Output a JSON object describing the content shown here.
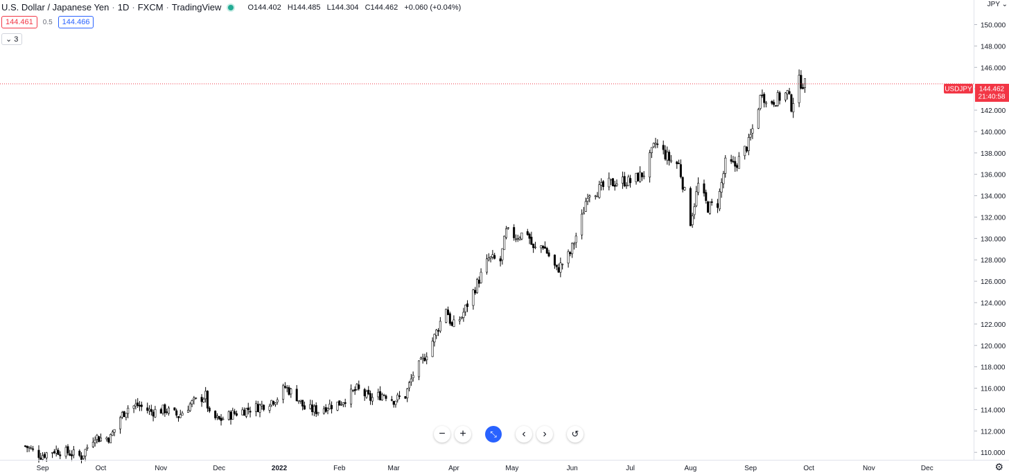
{
  "legend": {
    "symbol_title": "U.S. Dollar / Japanese Yen",
    "interval": "1D",
    "exchange": "FXCM",
    "source": "TradingView",
    "open": "O144.402",
    "high": "H144.485",
    "low": "L144.304",
    "close": "C144.462",
    "change": "+0.060 (+0.04%)"
  },
  "trade": {
    "sell_price": "144.461",
    "spread": "0.5",
    "buy_price": "144.466"
  },
  "indicators_toggle": "3",
  "currency": "JPY",
  "price_label": {
    "symbol": "USDJPY",
    "price": "144.462",
    "countdown": "21:40:58"
  },
  "colors": {
    "price_line": "#f23645",
    "candle": "#000000",
    "accent": "#2962ff"
  },
  "navigation": {
    "icons": [
      "zoom-out-icon",
      "zoom-in-icon",
      "reset-scale-icon",
      "scroll-left-icon",
      "scroll-right-icon",
      "reset-chart-icon"
    ]
  },
  "chart_data": {
    "type": "candlestick",
    "series_name": "USDJPY",
    "y_ticks": [
      "150.000",
      "148.000",
      "146.000",
      "144.000",
      "142.000",
      "140.000",
      "138.000",
      "136.000",
      "134.000",
      "132.000",
      "130.000",
      "128.000",
      "126.000",
      "124.000",
      "122.000",
      "120.000",
      "118.000",
      "116.000",
      "114.000",
      "112.000",
      "110.000"
    ],
    "ylim": [
      109.3,
      152.3
    ],
    "x_ticks": [
      {
        "label": "Sep",
        "date": "2021-09-01"
      },
      {
        "label": "Oct",
        "date": "2021-10-01"
      },
      {
        "label": "Nov",
        "date": "2021-11-01"
      },
      {
        "label": "Dec",
        "date": "2021-12-01"
      },
      {
        "label": "2022",
        "date": "2022-01-01"
      },
      {
        "label": "Feb",
        "date": "2022-02-01"
      },
      {
        "label": "Mar",
        "date": "2022-03-01"
      },
      {
        "label": "Apr",
        "date": "2022-04-01"
      },
      {
        "label": "May",
        "date": "2022-05-01"
      },
      {
        "label": "Jun",
        "date": "2022-06-01"
      },
      {
        "label": "Jul",
        "date": "2022-07-01"
      },
      {
        "label": "Aug",
        "date": "2022-08-01"
      },
      {
        "label": "Sep",
        "date": "2022-09-01"
      },
      {
        "label": "Oct",
        "date": "2022-10-01"
      },
      {
        "label": "Nov",
        "date": "2022-11-01"
      },
      {
        "label": "Dec",
        "date": "2022-12-01"
      }
    ],
    "last_price": 144.462,
    "anchors": [
      [
        "2021-08-23",
        110.6
      ],
      [
        "2021-08-31",
        109.7
      ],
      [
        "2021-09-07",
        110.2
      ],
      [
        "2021-09-14",
        110.0
      ],
      [
        "2021-09-21",
        109.6
      ],
      [
        "2021-09-24",
        110.5
      ],
      [
        "2021-09-28",
        111.6
      ],
      [
        "2021-09-30",
        111.3
      ],
      [
        "2021-10-06",
        111.4
      ],
      [
        "2021-10-11",
        113.3
      ],
      [
        "2021-10-15",
        114.2
      ],
      [
        "2021-10-20",
        114.4
      ],
      [
        "2021-10-27",
        113.8
      ],
      [
        "2021-11-03",
        114.0
      ],
      [
        "2021-11-10",
        113.4
      ],
      [
        "2021-11-16",
        114.5
      ],
      [
        "2021-11-24",
        115.3
      ],
      [
        "2021-11-26",
        113.4
      ],
      [
        "2021-12-01",
        113.0
      ],
      [
        "2021-12-08",
        113.6
      ],
      [
        "2021-12-15",
        114.0
      ],
      [
        "2021-12-22",
        114.3
      ],
      [
        "2021-12-31",
        115.1
      ],
      [
        "2022-01-04",
        116.1
      ],
      [
        "2022-01-10",
        115.2
      ],
      [
        "2022-01-14",
        114.1
      ],
      [
        "2022-01-21",
        113.9
      ],
      [
        "2022-01-25",
        114.3
      ],
      [
        "2022-02-01",
        114.6
      ],
      [
        "2022-02-10",
        115.9
      ],
      [
        "2022-02-17",
        115.0
      ],
      [
        "2022-02-24",
        115.5
      ],
      [
        "2022-03-01",
        114.9
      ],
      [
        "2022-03-07",
        115.3
      ],
      [
        "2022-03-11",
        117.3
      ],
      [
        "2022-03-16",
        118.6
      ],
      [
        "2022-03-22",
        120.8
      ],
      [
        "2022-03-28",
        123.6
      ],
      [
        "2022-03-31",
        121.7
      ],
      [
        "2022-04-05",
        122.7
      ],
      [
        "2022-04-12",
        125.4
      ],
      [
        "2022-04-19",
        128.1
      ],
      [
        "2022-04-25",
        127.9
      ],
      [
        "2022-04-28",
        130.6
      ],
      [
        "2022-05-03",
        130.2
      ],
      [
        "2022-05-09",
        130.6
      ],
      [
        "2022-05-12",
        128.9
      ],
      [
        "2022-05-17",
        129.4
      ],
      [
        "2022-05-24",
        127.0
      ],
      [
        "2022-05-31",
        128.6
      ],
      [
        "2022-06-06",
        131.9
      ],
      [
        "2022-06-09",
        134.3
      ],
      [
        "2022-06-14",
        134.5
      ],
      [
        "2022-06-20",
        135.1
      ],
      [
        "2022-06-27",
        135.4
      ],
      [
        "2022-07-01",
        135.3
      ],
      [
        "2022-07-08",
        136.1
      ],
      [
        "2022-07-14",
        138.9
      ],
      [
        "2022-07-21",
        137.4
      ],
      [
        "2022-07-26",
        136.9
      ],
      [
        "2022-08-01",
        131.6
      ],
      [
        "2022-08-05",
        135.0
      ],
      [
        "2022-08-10",
        132.9
      ],
      [
        "2022-08-15",
        133.3
      ],
      [
        "2022-08-19",
        137.0
      ],
      [
        "2022-08-24",
        136.8
      ],
      [
        "2022-08-31",
        138.9
      ],
      [
        "2022-09-02",
        140.2
      ],
      [
        "2022-09-07",
        143.9
      ],
      [
        "2022-09-09",
        142.6
      ],
      [
        "2022-09-14",
        143.0
      ],
      [
        "2022-09-20",
        143.6
      ],
      [
        "2022-09-22",
        142.4
      ],
      [
        "2022-09-26",
        144.7
      ],
      [
        "2022-09-29",
        144.4
      ]
    ],
    "grid": false
  }
}
